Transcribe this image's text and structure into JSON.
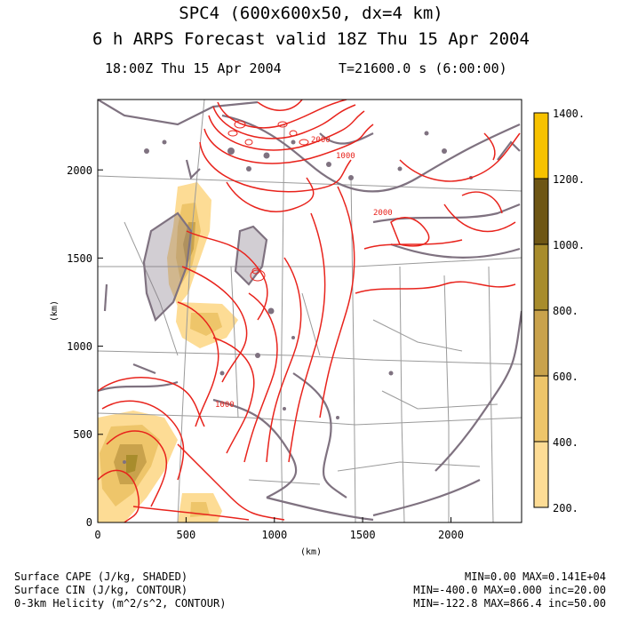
{
  "header": {
    "title_line1": "SPC4 (600x600x50, dx=4 km)",
    "title_line2": "6 h ARPS Forecast valid 18Z Thu 15 Apr 2004",
    "valid_time": "18:00Z Thu 15 Apr 2004",
    "forecast_time": "T=21600.0 s (6:00:00)"
  },
  "axes": {
    "x_ticks": [
      "0",
      "500",
      "1000",
      "1500",
      "2000"
    ],
    "y_ticks": [
      "0",
      "500",
      "1000",
      "1500",
      "2000"
    ],
    "x_unit": "(km)",
    "y_unit": "(km)"
  },
  "colorbar": {
    "labels": [
      "200.",
      "400.",
      "600.",
      "800.",
      "1000.",
      "1200.",
      "1400."
    ],
    "colors": [
      "#fddc95",
      "#eec56a",
      "#c9a24c",
      "#a88c2c",
      "#8e7a1c",
      "#6e5614",
      "#f7c200"
    ]
  },
  "contour_labels": [
    "1000",
    "2000",
    "1000",
    "2000"
  ],
  "footer": {
    "line1_left": "Surface CAPE (J/kg, SHADED)",
    "line1_right": "MIN=0.00 MAX=0.141E+04",
    "line2_left": "Surface CIN (J/kg, CONTOUR)",
    "line2_right": "MIN=-400.0 MAX=0.000 inc=20.00",
    "line3_left": "0-3km Helicity (m^2/s^2, CONTOUR)",
    "line3_right": "MIN=-122.8 MAX=866.4 inc=50.00"
  },
  "colors": {
    "helicity": "#e8231c",
    "cin": "#7f7280",
    "boundaries": "#9a9a9a"
  }
}
